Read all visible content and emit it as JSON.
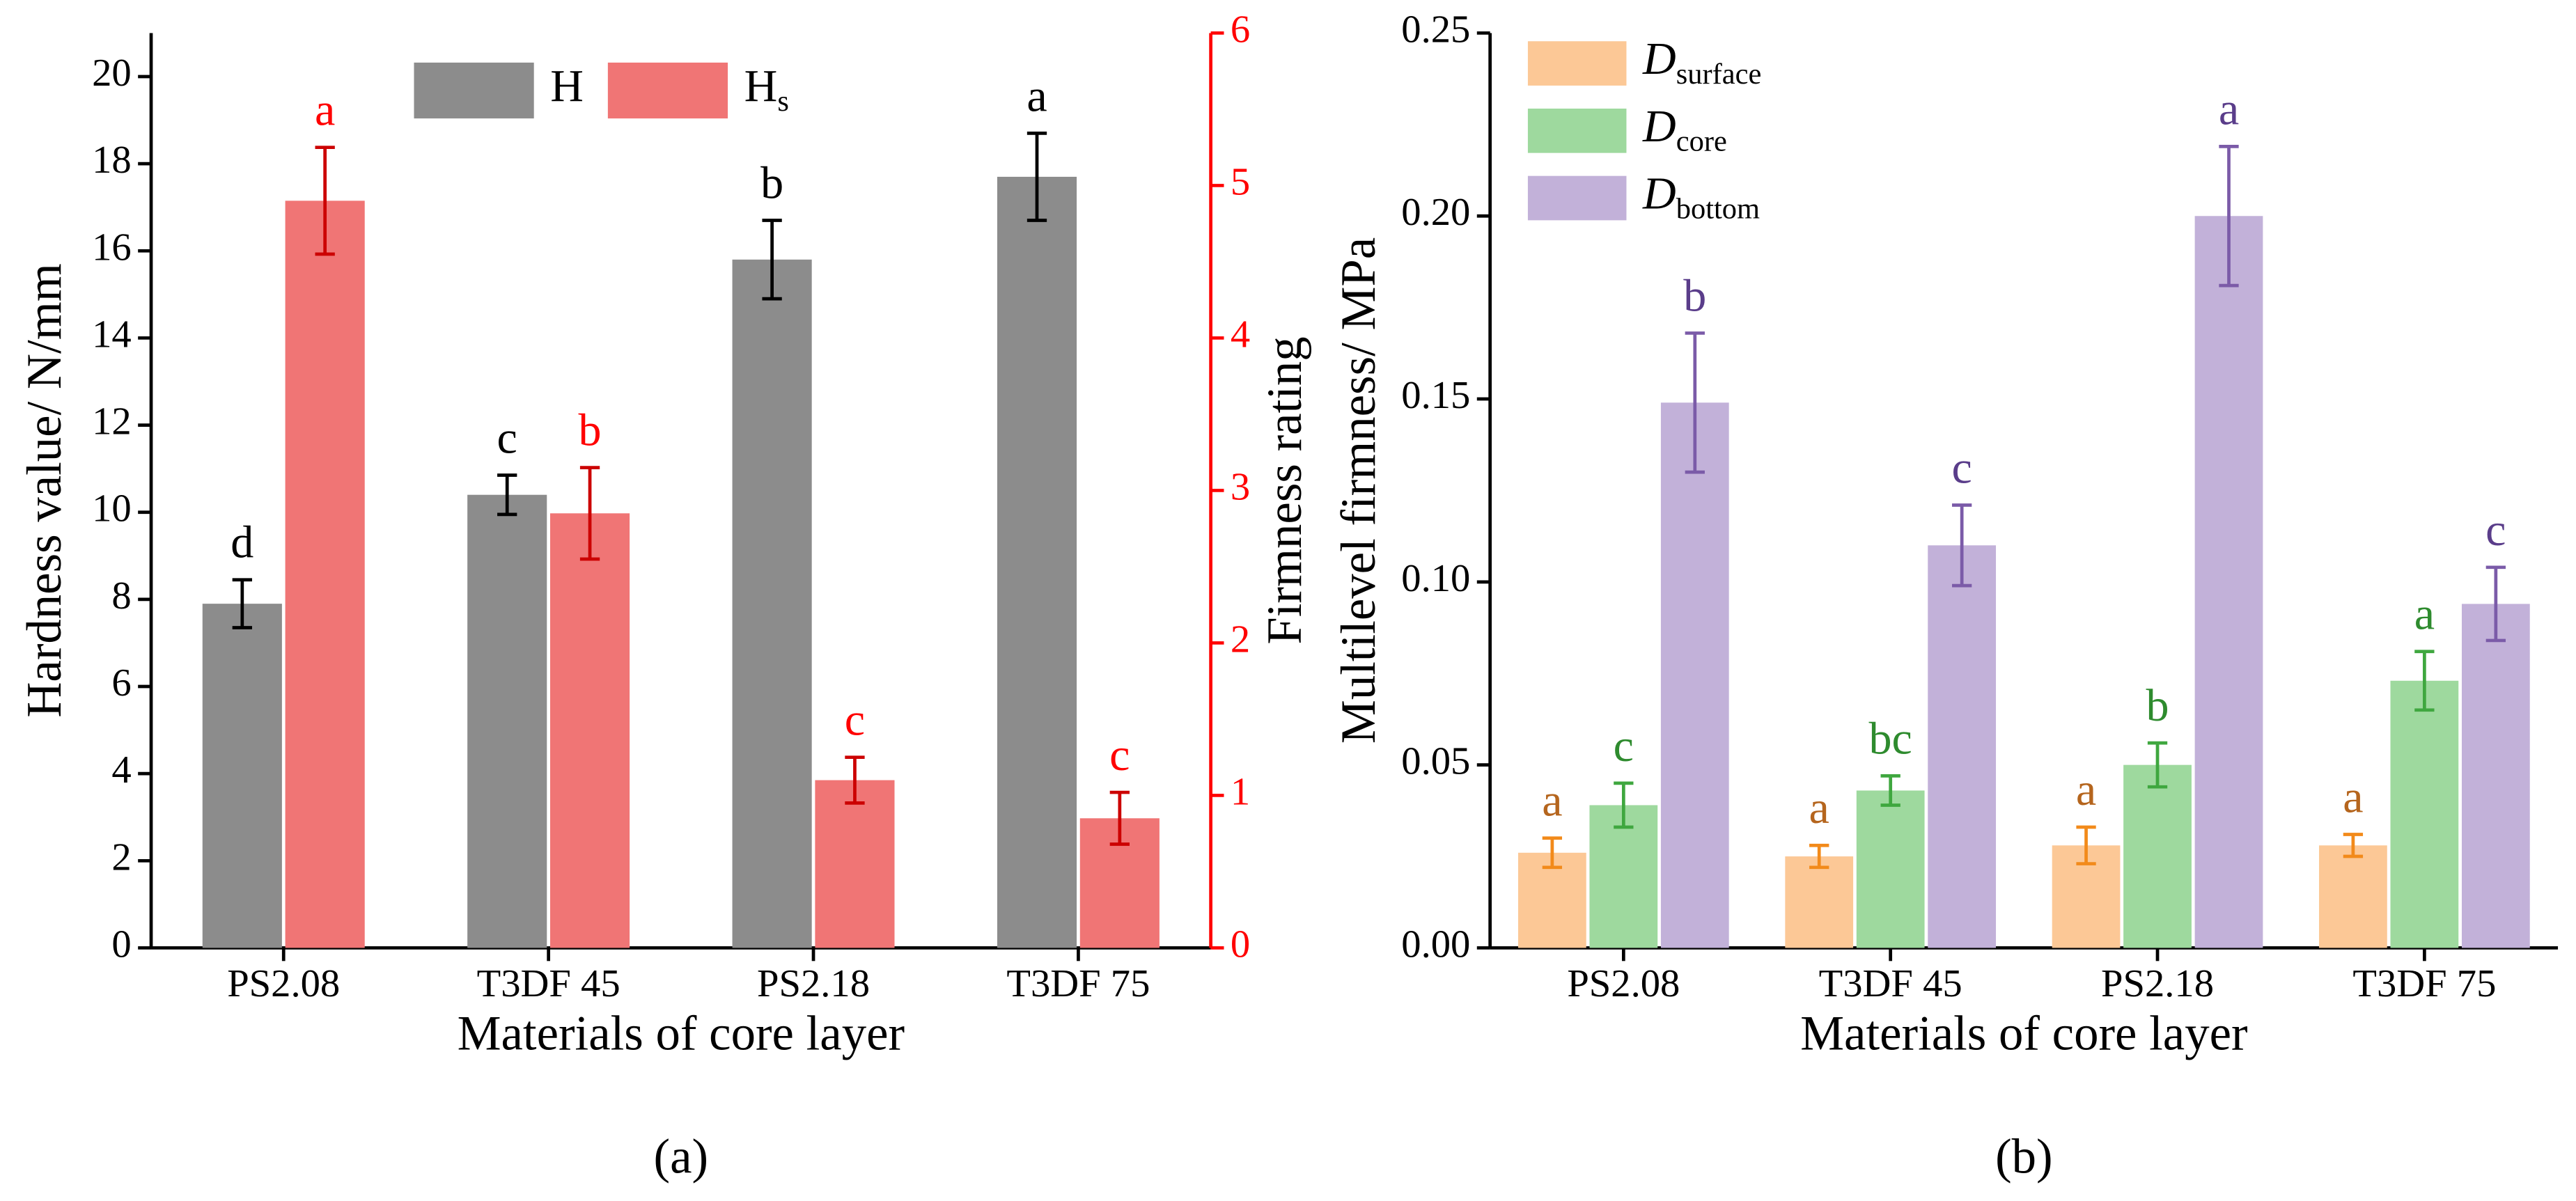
{
  "chart_data": [
    {
      "type": "bar",
      "panel_label": "(a)",
      "x_label": "Materials of core layer",
      "y_label": "Hardness value/ N/mm",
      "y2_label": "Firmness rating",
      "categories": [
        "PS2.08",
        "T3DF 45",
        "PS2.18",
        "T3DF 75"
      ],
      "ylim": [
        0,
        21
      ],
      "yticks": [
        0,
        2,
        4,
        6,
        8,
        10,
        12,
        14,
        16,
        18,
        20
      ],
      "y2lim": [
        0,
        6
      ],
      "y2ticks": [
        0,
        1,
        2,
        3,
        4,
        5,
        6
      ],
      "y2_color": "#ff0000",
      "legend_orientation": "horizontal",
      "series": [
        {
          "name": "H",
          "subscript": "",
          "color": "#8c8c8c",
          "error_color": "#000000",
          "letter_color": "#000000",
          "values": [
            7.9,
            10.4,
            15.8,
            17.7
          ],
          "errors": [
            0.55,
            0.45,
            0.9,
            1.0
          ],
          "letters": [
            "d",
            "c",
            "b",
            "a"
          ]
        },
        {
          "name": "H",
          "subscript": "s",
          "color": "#f07575",
          "error_color": "#cc0000",
          "letter_color": "#ff0000",
          "axis": "y2",
          "values": [
            4.9,
            2.85,
            1.1,
            0.85
          ],
          "errors": [
            0.35,
            0.3,
            0.15,
            0.17
          ],
          "letters": [
            "a",
            "b",
            "c",
            "c"
          ]
        }
      ]
    },
    {
      "type": "bar",
      "panel_label": "(b)",
      "x_label": "Materials of core layer",
      "y_label": "Multilevel firmness/ MPa",
      "categories": [
        "PS2.08",
        "T3DF 45",
        "PS2.18",
        "T3DF 75"
      ],
      "ylim": [
        0,
        0.25
      ],
      "yticks": [
        {
          "value": 0,
          "label": "0.00"
        },
        {
          "value": 0.05,
          "label": "0.05"
        },
        {
          "value": 0.1,
          "label": "0.10"
        },
        {
          "value": 0.15,
          "label": "0.15"
        },
        {
          "value": 0.2,
          "label": "0.20"
        },
        {
          "value": 0.25,
          "label": "0.25"
        }
      ],
      "legend_orientation": "vertical",
      "series": [
        {
          "name": "D",
          "subscript": "surface",
          "color": "#fcc896",
          "error_color": "#f28a1a",
          "letter_color": "#b5651d",
          "values": [
            0.026,
            0.025,
            0.028,
            0.028
          ],
          "errors": [
            0.004,
            0.003,
            0.005,
            0.003
          ],
          "letters": [
            "a",
            "a",
            "a",
            "a"
          ]
        },
        {
          "name": "D",
          "subscript": "core",
          "color": "#9ed99e",
          "error_color": "#3fa73f",
          "letter_color": "#2e8b2e",
          "values": [
            0.039,
            0.043,
            0.05,
            0.073
          ],
          "errors": [
            0.006,
            0.004,
            0.006,
            0.008
          ],
          "letters": [
            "c",
            "bc",
            "b",
            "a"
          ]
        },
        {
          "name": "D",
          "subscript": "bottom",
          "color": "#c2b1d9",
          "error_color": "#7b5ba8",
          "letter_color": "#5a3d8a",
          "values": [
            0.149,
            0.11,
            0.2,
            0.094
          ],
          "errors": [
            0.019,
            0.011,
            0.019,
            0.01
          ],
          "letters": [
            "b",
            "c",
            "a",
            "c"
          ]
        }
      ]
    }
  ]
}
